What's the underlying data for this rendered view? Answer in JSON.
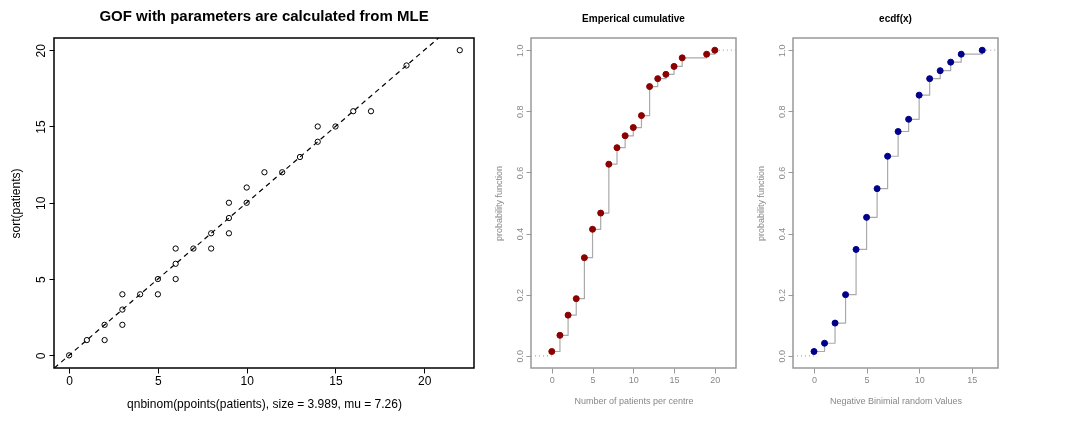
{
  "chart_data": [
    {
      "type": "scatter",
      "title": "GOF with parameters are calculated from MLE",
      "xlabel": "qnbinom(ppoints(patients), size = 3.989, mu = 7.26)",
      "ylabel": "sort(patients)",
      "xlim": [
        -0.85,
        22.8
      ],
      "ylim": [
        -0.83,
        20.8
      ],
      "xticks": [
        0,
        5,
        10,
        15,
        20
      ],
      "yticks": [
        0,
        5,
        10,
        15,
        20
      ],
      "grid": false,
      "series": [
        {
          "type": "scatter",
          "marker": "circle",
          "color": "#000000",
          "x": [
            0,
            1,
            2,
            2,
            3,
            3,
            3,
            4,
            5,
            5,
            6,
            6,
            6,
            7,
            8,
            8,
            9,
            9,
            9,
            10,
            10,
            11,
            12,
            13,
            14,
            14,
            15,
            16,
            17,
            19,
            22
          ],
          "values": [
            0,
            1,
            1,
            2,
            2,
            3,
            4,
            4,
            4,
            5,
            5,
            6,
            7,
            7,
            7,
            8,
            8,
            9,
            10,
            10,
            11,
            12,
            12,
            13,
            14,
            15,
            15,
            16,
            16,
            19,
            20
          ]
        },
        {
          "type": "line",
          "marker": "none",
          "line_style": "dashed",
          "color": "#000000",
          "x": [
            -0.83,
            20.8
          ],
          "values": [
            -0.83,
            20.8
          ]
        }
      ]
    },
    {
      "type": "step",
      "title": "Emperical cumulative",
      "xlabel": "Number of patients per centre",
      "ylabel": "probability function",
      "xlim": [
        -2.55,
        22.6
      ],
      "ylim": [
        -0.04,
        1.04
      ],
      "xticks": [
        0,
        5,
        10,
        15,
        20
      ],
      "yticks": [
        {
          "value": 0,
          "label": "0.0"
        },
        {
          "value": 0.2,
          "label": "0.2"
        },
        {
          "value": 0.4,
          "label": "0.4"
        },
        {
          "value": 0.6,
          "label": "0.6"
        },
        {
          "value": 0.8,
          "label": "0.8"
        },
        {
          "value": 1,
          "label": "1.0"
        }
      ],
      "grid": false,
      "series": [
        {
          "type": "step",
          "marker": "none",
          "color": "#aaaaaa",
          "x": [
            0,
            1,
            2,
            3,
            4,
            5,
            6,
            7,
            8,
            9,
            10,
            11,
            12,
            13,
            14,
            15,
            16,
            19,
            20
          ],
          "values": [
            0.014,
            0.067,
            0.133,
            0.187,
            0.321,
            0.414,
            0.467,
            0.627,
            0.681,
            0.72,
            0.747,
            0.786,
            0.881,
            0.907,
            0.921,
            0.947,
            0.975,
            0.987,
            1.0
          ]
        },
        {
          "type": "line",
          "marker": "none",
          "line_style": "dotted",
          "color": "#aaaaaa",
          "x": [
            -2.55,
            0
          ],
          "values": [
            0,
            0
          ]
        },
        {
          "type": "line",
          "marker": "none",
          "line_style": "dotted",
          "color": "#aaaaaa",
          "x": [
            20,
            22.6
          ],
          "values": [
            1,
            1
          ]
        },
        {
          "type": "scatter",
          "marker": "circle",
          "color": "#8b0000",
          "x": [
            0,
            1,
            2,
            3,
            4,
            5,
            6,
            7,
            8,
            9,
            10,
            11,
            12,
            13,
            14,
            15,
            16,
            19,
            20
          ],
          "values": [
            0.014,
            0.067,
            0.133,
            0.187,
            0.321,
            0.414,
            0.467,
            0.627,
            0.681,
            0.72,
            0.747,
            0.786,
            0.881,
            0.907,
            0.921,
            0.947,
            0.975,
            0.987,
            1.0
          ]
        }
      ]
    },
    {
      "type": "step",
      "title": "ecdf(x)",
      "xlabel": "Negative Binimial random Values",
      "ylabel": "probability function",
      "xlim": [
        -2.0,
        17.5
      ],
      "ylim": [
        -0.04,
        1.04
      ],
      "xticks": [
        0,
        5,
        10,
        15
      ],
      "yticks": [
        {
          "value": 0,
          "label": "0.0"
        },
        {
          "value": 0.2,
          "label": "0.2"
        },
        {
          "value": 0.4,
          "label": "0.4"
        },
        {
          "value": 0.6,
          "label": "0.6"
        },
        {
          "value": 0.8,
          "label": "0.8"
        },
        {
          "value": 1,
          "label": "1.0"
        }
      ],
      "grid": false,
      "series": [
        {
          "type": "step",
          "marker": "none",
          "color": "#aaaaaa",
          "x": [
            0,
            1,
            2,
            3,
            4,
            5,
            6,
            7,
            8,
            9,
            10,
            11,
            12,
            13,
            14,
            16
          ],
          "values": [
            0.014,
            0.041,
            0.107,
            0.2,
            0.348,
            0.453,
            0.547,
            0.653,
            0.734,
            0.774,
            0.853,
            0.907,
            0.933,
            0.961,
            0.987,
            1.0
          ]
        },
        {
          "type": "line",
          "marker": "none",
          "line_style": "dotted",
          "color": "#aaaaaa",
          "x": [
            -2.0,
            0
          ],
          "values": [
            0,
            0
          ]
        },
        {
          "type": "line",
          "marker": "none",
          "line_style": "dotted",
          "color": "#aaaaaa",
          "x": [
            16,
            17.5
          ],
          "values": [
            1,
            1
          ]
        },
        {
          "type": "scatter",
          "marker": "circle",
          "color": "#00008b",
          "x": [
            0,
            1,
            2,
            3,
            4,
            5,
            6,
            7,
            8,
            9,
            10,
            11,
            12,
            13,
            14,
            16
          ],
          "values": [
            0.014,
            0.041,
            0.107,
            0.2,
            0.348,
            0.453,
            0.547,
            0.653,
            0.734,
            0.774,
            0.853,
            0.907,
            0.933,
            0.961,
            0.987,
            1.0
          ]
        }
      ]
    }
  ]
}
